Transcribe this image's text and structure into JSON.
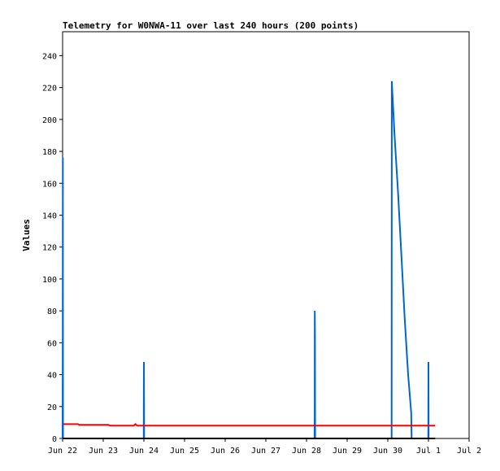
{
  "chart_data": {
    "type": "line",
    "title": "Telemetry for W0NWA-11 over last 240 hours (200 points)",
    "xlabel": "",
    "ylabel": "Values",
    "x_tick_labels": [
      "Jun 22",
      "Jun 23",
      "Jun 24",
      "Jun 25",
      "Jun 26",
      "Jun 27",
      "Jun 28",
      "Jun 29",
      "Jun 30",
      "Jul 1",
      "Jul 2"
    ],
    "xlim": [
      "2024-06-22",
      "2024-07-02"
    ],
    "y_ticks": [
      0,
      20,
      40,
      60,
      80,
      100,
      120,
      140,
      160,
      180,
      200,
      220,
      240
    ],
    "ylim": [
      0,
      255
    ],
    "grid": false,
    "legend": "none",
    "series": [
      {
        "color": "#0066cc",
        "points": [
          [
            "2024-06-22 00:00",
            0
          ],
          [
            "2024-06-22 00:05",
            64
          ],
          [
            "2024-06-22 00:10",
            176
          ],
          [
            "2024-06-22 00:15",
            0
          ],
          [
            "2024-06-23 23:55",
            0
          ],
          [
            "2024-06-24 00:00",
            48
          ],
          [
            "2024-06-24 00:05",
            24
          ],
          [
            "2024-06-24 00:10",
            0
          ],
          [
            "2024-06-28 04:45",
            0
          ],
          [
            "2024-06-28 04:50",
            16
          ],
          [
            "2024-06-28 04:55",
            80
          ],
          [
            "2024-06-28 05:00",
            64
          ],
          [
            "2024-06-28 05:05",
            0
          ],
          [
            "2024-06-30 02:15",
            0
          ],
          [
            "2024-06-30 02:20",
            224
          ],
          [
            "2024-06-30 03:00",
            210
          ],
          [
            "2024-06-30 04:00",
            190
          ],
          [
            "2024-06-30 06:00",
            155
          ],
          [
            "2024-06-30 08:00",
            115
          ],
          [
            "2024-06-30 10:00",
            75
          ],
          [
            "2024-06-30 12:00",
            40
          ],
          [
            "2024-06-30 13:50",
            16
          ],
          [
            "2024-06-30 14:05",
            0
          ],
          [
            "2024-06-30 23:55",
            0
          ],
          [
            "2024-07-01 00:00",
            48
          ],
          [
            "2024-07-01 00:05",
            0
          ]
        ]
      },
      {
        "color": "#ff0000",
        "points": [
          [
            "2024-06-22 00:00",
            9
          ],
          [
            "2024-06-22 09:00",
            9
          ],
          [
            "2024-06-22 10:00",
            8.5
          ],
          [
            "2024-06-23 03:00",
            8.5
          ],
          [
            "2024-06-23 04:00",
            8
          ],
          [
            "2024-06-23 18:00",
            8
          ],
          [
            "2024-06-23 19:00",
            9
          ],
          [
            "2024-06-23 20:00",
            8
          ],
          [
            "2024-07-01 04:00",
            8
          ]
        ]
      },
      {
        "color": "#000000",
        "points": [
          [
            "2024-06-22 00:00",
            0
          ],
          [
            "2024-07-01 04:00",
            0
          ]
        ]
      }
    ]
  }
}
